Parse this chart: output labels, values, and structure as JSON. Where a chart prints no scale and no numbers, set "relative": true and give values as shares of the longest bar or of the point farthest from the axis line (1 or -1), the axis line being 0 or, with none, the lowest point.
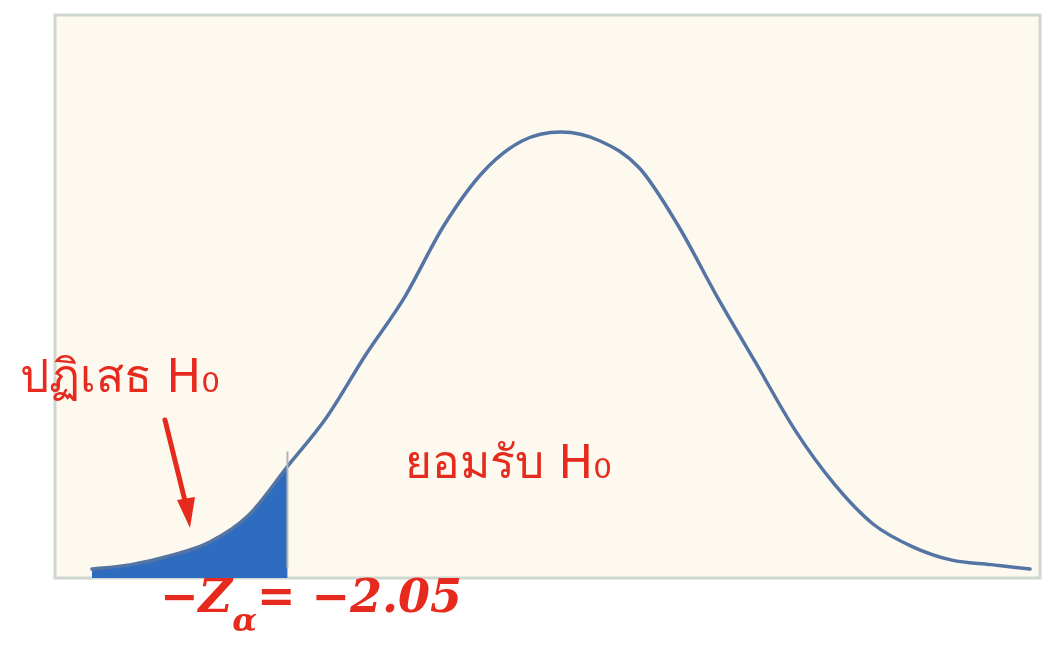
{
  "chart_data": {
    "type": "line",
    "relative": true,
    "categories": [
      null,
      null,
      null,
      null,
      null,
      null,
      null,
      null,
      null,
      null,
      null,
      null,
      null,
      null,
      null,
      null,
      null,
      null,
      null,
      null,
      null,
      null,
      null,
      null,
      null
    ],
    "series": [
      {
        "type": "area",
        "color": "#2e6cc0",
        "values": [
          0.02,
          0.03,
          0.05,
          0.08,
          0.14,
          0.25,
          null,
          null,
          null,
          null,
          null,
          null,
          null,
          null,
          null,
          null,
          null,
          null,
          null,
          null,
          null,
          null,
          null,
          null,
          null
        ]
      },
      {
        "color": "#5474a4",
        "values": [
          0.02,
          0.03,
          0.05,
          0.08,
          0.14,
          0.25,
          0.36,
          0.5,
          0.63,
          0.79,
          0.91,
          0.98,
          1,
          0.98,
          0.92,
          0.79,
          0.63,
          0.48,
          0.33,
          0.21,
          0.12,
          0.07,
          0.04,
          0.03,
          0.02
        ]
      }
    ],
    "annotations": [
      "ปฏิเสธ  H₀",
      "ยอมรับ H₀",
      "−Z$_{α}$= −2.05"
    ]
  }
}
